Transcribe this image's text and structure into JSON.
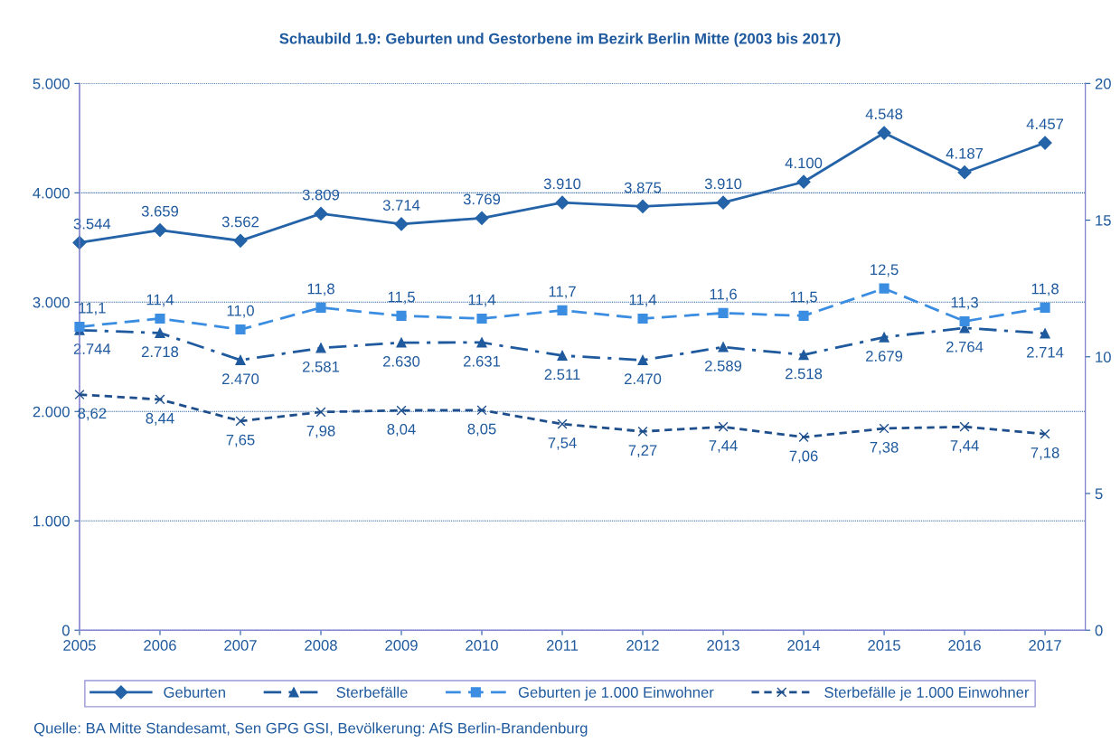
{
  "chart_data": {
    "type": "line",
    "title": "Schaubild 1.9: Geburten und Gestorbene im Bezirk Berlin Mitte (2003 bis 2017)",
    "categories": [
      "2005",
      "2006",
      "2007",
      "2008",
      "2009",
      "2010",
      "2011",
      "2012",
      "2013",
      "2014",
      "2015",
      "2016",
      "2017"
    ],
    "series": [
      {
        "name": "Geburten",
        "color": "#2463a8",
        "marker": "diamond",
        "line_style": "solid",
        "values": [
          3544,
          3659,
          3562,
          3809,
          3714,
          3769,
          3910,
          3875,
          3910,
          4100,
          4548,
          4187,
          4457
        ],
        "value_labels": [
          "3.544",
          "3.659",
          "3.562",
          "3.809",
          "3.714",
          "3.769",
          "3.910",
          "3.875",
          "3.910",
          "4.100",
          "4.548",
          "4.187",
          "4.457"
        ]
      },
      {
        "name": "Sterbefälle",
        "color": "#1f5a9e",
        "marker": "triangle",
        "line_style": "dashdot",
        "values": [
          2744,
          2718,
          2470,
          2581,
          2630,
          2631,
          2511,
          2470,
          2589,
          2518,
          2679,
          2764,
          2714
        ],
        "value_labels": [
          "2.744",
          "2.718",
          "2.470",
          "2.581",
          "2.630",
          "2.631",
          "2.511",
          "2.470",
          "2.589",
          "2.518",
          "2.679",
          "2.764",
          "2.714"
        ]
      },
      {
        "name": "Geburten je 1.000 Einwohner",
        "color": "#3a8de0",
        "marker": "square",
        "line_style": "dashed",
        "axis": "y2",
        "values": [
          11.1,
          11.4,
          11.0,
          11.8,
          11.5,
          11.4,
          11.7,
          11.4,
          11.6,
          11.5,
          12.5,
          11.3,
          11.8
        ],
        "value_labels": [
          "11,1",
          "11,4",
          "11,0",
          "11,8",
          "11,5",
          "11,4",
          "11,7",
          "11,4",
          "11,6",
          "11,5",
          "12,5",
          "11,3",
          "11,8"
        ]
      },
      {
        "name": "Sterbefälle je 1.000 Einwohner",
        "color": "#1e4f8c",
        "marker": "cross",
        "line_style": "dotted",
        "axis": "y2",
        "values": [
          8.62,
          8.44,
          7.65,
          7.98,
          8.04,
          8.05,
          7.54,
          7.27,
          7.44,
          7.06,
          7.38,
          7.44,
          7.18
        ],
        "value_labels": [
          "8,62",
          "8,44",
          "7,65",
          "7,98",
          "8,04",
          "8,05",
          "7,54",
          "7,27",
          "7,44",
          "7,06",
          "7,38",
          "7,44",
          "7,18"
        ]
      }
    ],
    "ylim": [
      0,
      5000
    ],
    "yticks": [
      0,
      {
        "value": 1000,
        "label": "1.000"
      },
      {
        "value": 2000,
        "label": "2.000"
      },
      {
        "value": 3000,
        "label": "3.000"
      },
      {
        "value": 4000,
        "label": "4.000"
      },
      {
        "value": 5000,
        "label": "5.000"
      }
    ],
    "y2lim": [
      0,
      20
    ],
    "y2ticks": [
      0,
      5,
      10,
      15,
      20
    ],
    "grid": "y",
    "legend": "bottom",
    "annotations": [
      "Quelle: BA Mitte Standesamt, Sen GPG GSI, Bevölkerung: AfS Berlin-Brandenburg"
    ]
  }
}
